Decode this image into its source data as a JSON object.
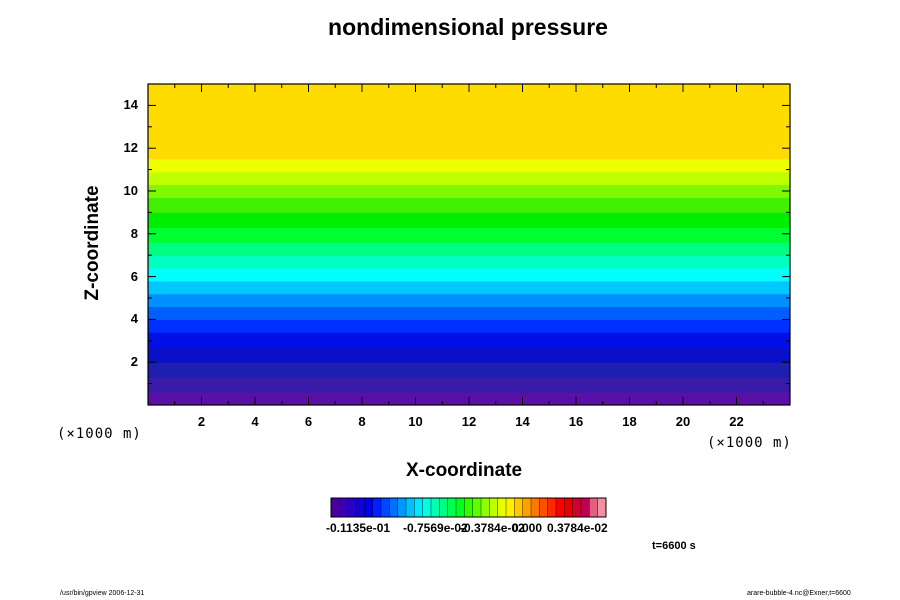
{
  "chart_data": {
    "type": "heatmap",
    "title": "nondimensional pressure",
    "xlabel": "X-coordinate",
    "ylabel": "Z-coordinate",
    "x_unit": "(×1000 m)",
    "z_unit": "(×1000 m)",
    "xlim": [
      0,
      24
    ],
    "ylim": [
      0,
      15
    ],
    "x_ticks": [
      2,
      4,
      6,
      8,
      10,
      12,
      14,
      16,
      18,
      20,
      22
    ],
    "y_ticks": [
      2,
      4,
      6,
      8,
      10,
      12,
      14
    ],
    "bands": [
      {
        "z0": 0.0,
        "z1": 0.6,
        "color": "#5a0fa6"
      },
      {
        "z0": 0.6,
        "z1": 1.3,
        "color": "#3a1aa8"
      },
      {
        "z0": 1.3,
        "z1": 2.0,
        "color": "#1e1eb0"
      },
      {
        "z0": 2.0,
        "z1": 2.7,
        "color": "#0a10c8"
      },
      {
        "z0": 2.7,
        "z1": 3.4,
        "color": "#0010e6"
      },
      {
        "z0": 3.4,
        "z1": 4.0,
        "color": "#0030ff"
      },
      {
        "z0": 4.0,
        "z1": 4.6,
        "color": "#0060ff"
      },
      {
        "z0": 4.6,
        "z1": 5.2,
        "color": "#0090ff"
      },
      {
        "z0": 5.2,
        "z1": 5.8,
        "color": "#00c8ff"
      },
      {
        "z0": 5.8,
        "z1": 6.4,
        "color": "#00ffff"
      },
      {
        "z0": 6.4,
        "z1": 7.0,
        "color": "#00ffc0"
      },
      {
        "z0": 7.0,
        "z1": 7.6,
        "color": "#00ff80"
      },
      {
        "z0": 7.6,
        "z1": 8.3,
        "color": "#00ff30"
      },
      {
        "z0": 8.3,
        "z1": 9.0,
        "color": "#00ee00"
      },
      {
        "z0": 9.0,
        "z1": 9.7,
        "color": "#40f000"
      },
      {
        "z0": 9.7,
        "z1": 10.3,
        "color": "#80f800"
      },
      {
        "z0": 10.3,
        "z1": 10.9,
        "color": "#c0ff00"
      },
      {
        "z0": 10.9,
        "z1": 11.5,
        "color": "#f0ff00"
      },
      {
        "z0": 11.5,
        "z1": 15.0,
        "color": "#ffdc00"
      }
    ],
    "colorbar": {
      "colors": [
        "#4a00a0",
        "#3c00b4",
        "#2800c8",
        "#1400dc",
        "#0000f0",
        "#0020ff",
        "#0048ff",
        "#0070ff",
        "#0098ff",
        "#00c0ff",
        "#00e8ff",
        "#00ffe0",
        "#00ffb0",
        "#00ff80",
        "#00ff50",
        "#00ff20",
        "#30ff00",
        "#60ff00",
        "#90ff00",
        "#c0ff00",
        "#e8ff00",
        "#ffee00",
        "#ffc800",
        "#ffa000",
        "#ff7800",
        "#ff5000",
        "#ff2800",
        "#ff0000",
        "#e80000",
        "#d00030",
        "#c00050",
        "#e06080",
        "#f090a0"
      ],
      "labels": [
        "-0.1135e-01",
        "-0.7569e-02",
        "-0.3784e-02",
        "0.000",
        "0.3784e-02"
      ]
    },
    "time_label": "t=6600 s"
  },
  "footer": {
    "left": "/usr/bin/gpview 2006-12-31",
    "right": "arare-bubble-4.nc@Exner,t=6600"
  }
}
